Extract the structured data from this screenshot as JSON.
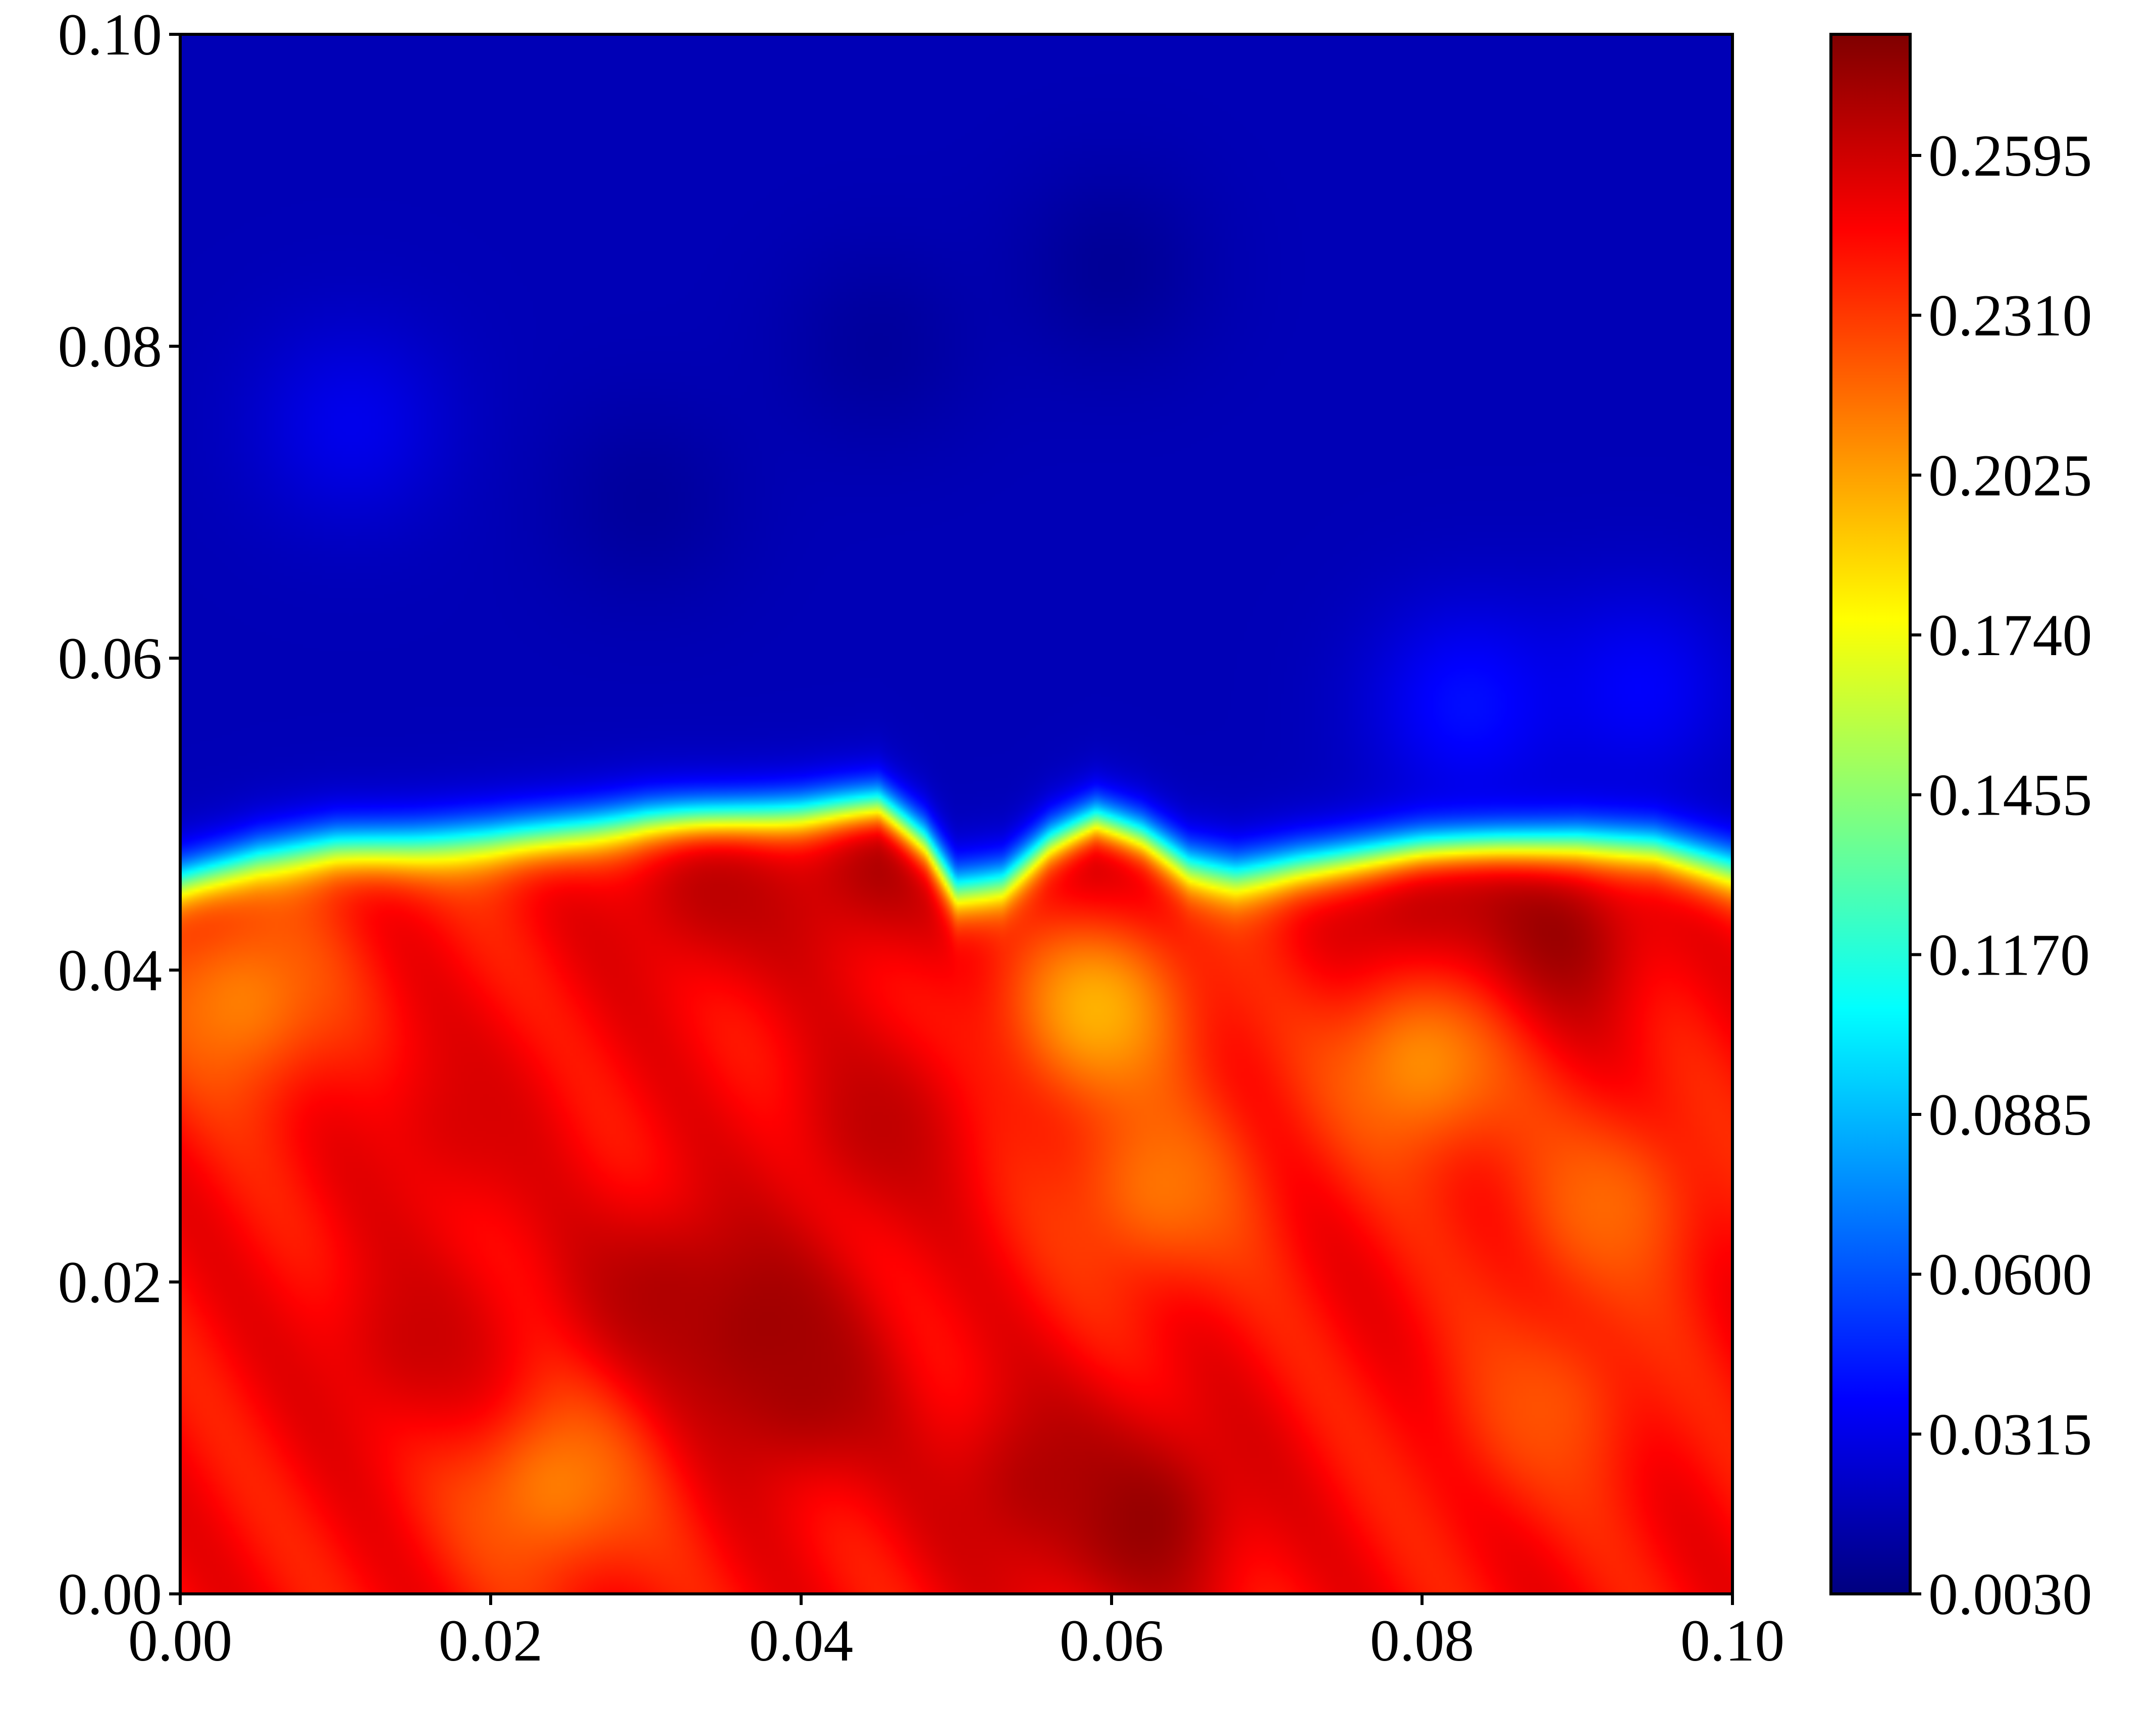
{
  "chart_data": {
    "type": "heatmap",
    "title": "",
    "xlabel": "",
    "ylabel": "",
    "xlim": [
      0.0,
      0.1
    ],
    "ylim": [
      0.0,
      0.1
    ],
    "x_ticks": [
      "0.00",
      "0.02",
      "0.04",
      "0.06",
      "0.08",
      "0.10"
    ],
    "y_ticks": [
      "0.00",
      "0.02",
      "0.04",
      "0.06",
      "0.08",
      "0.10"
    ],
    "colorbar": {
      "colormap": "jet",
      "range": [
        0.003,
        0.2811
      ],
      "ticks": [
        "0.0030",
        "0.0315",
        "0.0600",
        "0.0885",
        "0.1170",
        "0.1455",
        "0.1740",
        "0.2025",
        "0.2310",
        "0.2595"
      ],
      "stops": [
        "#00007f",
        "#0000ff",
        "#007fff",
        "#00ffff",
        "#7fff7f",
        "#ffff00",
        "#ff7f00",
        "#ff0000",
        "#7f0000"
      ]
    },
    "field": {
      "description_values": "approximate field values; lower region high (~0.22-0.28), upper region low (~0.01-0.04), sharp interface near y=0.05",
      "interface_y": [
        [
          0.0,
          0.0455
        ],
        [
          0.005,
          0.047
        ],
        [
          0.01,
          0.0478
        ],
        [
          0.015,
          0.048
        ],
        [
          0.02,
          0.0483
        ],
        [
          0.025,
          0.0488
        ],
        [
          0.03,
          0.0492
        ],
        [
          0.035,
          0.0493
        ],
        [
          0.04,
          0.0495
        ],
        [
          0.045,
          0.05
        ],
        [
          0.048,
          0.0475
        ],
        [
          0.05,
          0.0445
        ],
        [
          0.053,
          0.045
        ],
        [
          0.056,
          0.0475
        ],
        [
          0.059,
          0.049
        ],
        [
          0.062,
          0.048
        ],
        [
          0.065,
          0.0462
        ],
        [
          0.068,
          0.0458
        ],
        [
          0.072,
          0.0465
        ],
        [
          0.076,
          0.047
        ],
        [
          0.08,
          0.0475
        ],
        [
          0.085,
          0.0478
        ],
        [
          0.09,
          0.048
        ],
        [
          0.095,
          0.0478
        ],
        [
          0.1,
          0.0465
        ]
      ],
      "low_value": 0.018,
      "high_value": 0.245,
      "blobs": [
        {
          "x": 0.088,
          "y": 0.042,
          "v": 0.281
        },
        {
          "x": 0.08,
          "y": 0.043,
          "v": 0.272
        },
        {
          "x": 0.045,
          "y": 0.0475,
          "v": 0.275
        },
        {
          "x": 0.059,
          "y": 0.0465,
          "v": 0.27
        },
        {
          "x": 0.034,
          "y": 0.0455,
          "v": 0.268
        },
        {
          "x": 0.059,
          "y": 0.0375,
          "v": 0.19
        },
        {
          "x": 0.08,
          "y": 0.034,
          "v": 0.2
        },
        {
          "x": 0.063,
          "y": 0.026,
          "v": 0.21
        },
        {
          "x": 0.037,
          "y": 0.017,
          "v": 0.278
        },
        {
          "x": 0.04,
          "y": 0.013,
          "v": 0.272
        },
        {
          "x": 0.031,
          "y": 0.019,
          "v": 0.27
        },
        {
          "x": 0.062,
          "y": 0.005,
          "v": 0.28
        },
        {
          "x": 0.055,
          "y": 0.007,
          "v": 0.27
        },
        {
          "x": 0.024,
          "y": 0.007,
          "v": 0.205
        },
        {
          "x": 0.004,
          "y": 0.038,
          "v": 0.205
        },
        {
          "x": 0.015,
          "y": 0.016,
          "v": 0.262
        },
        {
          "x": 0.088,
          "y": 0.012,
          "v": 0.222
        },
        {
          "x": 0.092,
          "y": 0.025,
          "v": 0.215
        },
        {
          "x": 0.045,
          "y": 0.03,
          "v": 0.265
        },
        {
          "x": 0.018,
          "y": 0.03,
          "v": 0.258
        },
        {
          "x": 0.083,
          "y": 0.057,
          "v": 0.045
        },
        {
          "x": 0.094,
          "y": 0.058,
          "v": 0.04
        },
        {
          "x": 0.011,
          "y": 0.075,
          "v": 0.035
        },
        {
          "x": 0.03,
          "y": 0.07,
          "v": 0.01
        },
        {
          "x": 0.06,
          "y": 0.085,
          "v": 0.008
        },
        {
          "x": 0.045,
          "y": 0.08,
          "v": 0.01
        }
      ]
    }
  }
}
